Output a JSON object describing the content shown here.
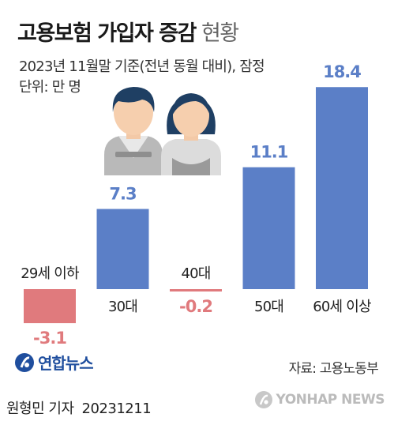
{
  "header": {
    "title_strong": "고용보험 가입자 증감",
    "title_light": "현황",
    "subtitle": "2023년 11월말 기준(전년 동월 대비), 잠정",
    "unit": "단위: 만 명"
  },
  "colors": {
    "positive": "#5b7fc7",
    "negative": "#e07a7d",
    "negative_label": "#e07a7d"
  },
  "chart_data": {
    "type": "bar",
    "categories": [
      "29세 이하",
      "30대",
      "40대",
      "50대",
      "60세 이상"
    ],
    "values": [
      -3.1,
      7.3,
      -0.2,
      11.1,
      18.4
    ],
    "value_labels": [
      "-3.1",
      "7.3",
      "-0.2",
      "11.1",
      "18.4"
    ],
    "title": "고용보험 가입자 증감 현황",
    "unit": "만 명"
  },
  "footer": {
    "logo": "연합뉴스",
    "source": "자료: 고용노동부",
    "reporter": "원형민 기자",
    "date": "20231211",
    "watermark": "YONHAP NEWS"
  }
}
